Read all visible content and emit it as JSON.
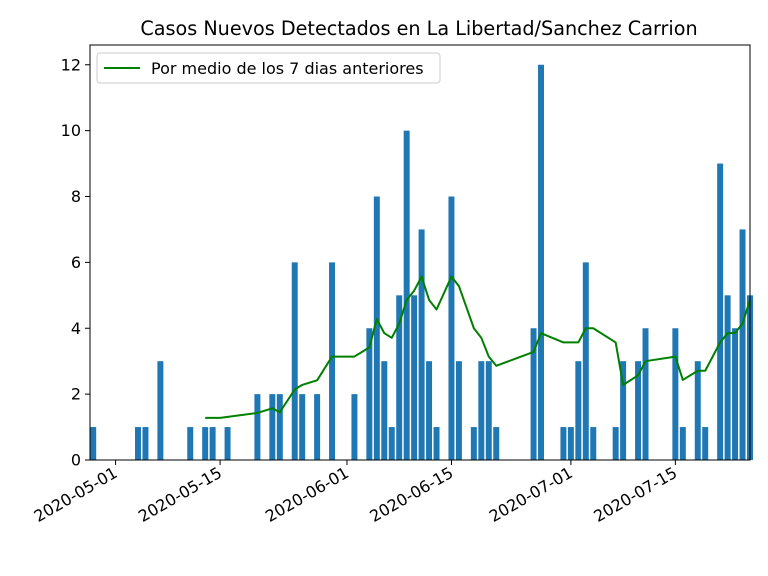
{
  "chart_data": {
    "type": "bar",
    "title": "Casos Nuevos Detectados en La Libertad/Sanchez Carrion",
    "xlabel": "",
    "ylabel": "",
    "x_range": [
      "2020-04-28",
      "2020-07-25"
    ],
    "ylim": [
      0,
      12.6
    ],
    "y_ticks": [
      0,
      2,
      4,
      6,
      8,
      10,
      12
    ],
    "x_ticks": [
      "2020-05-01",
      "2020-05-15",
      "2020-06-01",
      "2020-06-15",
      "2020-07-01",
      "2020-07-15"
    ],
    "grid": false,
    "legend": {
      "placement": "upper-left"
    },
    "bar_color": "#1f77b4",
    "line_color": "#008000",
    "series": [
      {
        "kind": "bar",
        "points": [
          [
            "2020-04-28",
            1
          ],
          [
            "2020-05-04",
            1
          ],
          [
            "2020-05-05",
            1
          ],
          [
            "2020-05-07",
            3
          ],
          [
            "2020-05-11",
            1
          ],
          [
            "2020-05-13",
            1
          ],
          [
            "2020-05-14",
            1
          ],
          [
            "2020-05-16",
            1
          ],
          [
            "2020-05-20",
            2
          ],
          [
            "2020-05-22",
            2
          ],
          [
            "2020-05-23",
            2
          ],
          [
            "2020-05-25",
            6
          ],
          [
            "2020-05-26",
            2
          ],
          [
            "2020-05-28",
            2
          ],
          [
            "2020-05-30",
            6
          ],
          [
            "2020-06-02",
            2
          ],
          [
            "2020-06-04",
            4
          ],
          [
            "2020-06-05",
            8
          ],
          [
            "2020-06-06",
            3
          ],
          [
            "2020-06-07",
            1
          ],
          [
            "2020-06-08",
            5
          ],
          [
            "2020-06-09",
            10
          ],
          [
            "2020-06-10",
            5
          ],
          [
            "2020-06-11",
            7
          ],
          [
            "2020-06-12",
            3
          ],
          [
            "2020-06-13",
            1
          ],
          [
            "2020-06-15",
            8
          ],
          [
            "2020-06-16",
            3
          ],
          [
            "2020-06-18",
            1
          ],
          [
            "2020-06-19",
            3
          ],
          [
            "2020-06-20",
            3
          ],
          [
            "2020-06-21",
            1
          ],
          [
            "2020-06-26",
            4
          ],
          [
            "2020-06-27",
            12
          ],
          [
            "2020-06-30",
            1
          ],
          [
            "2020-07-01",
            1
          ],
          [
            "2020-07-02",
            3
          ],
          [
            "2020-07-03",
            6
          ],
          [
            "2020-07-04",
            1
          ],
          [
            "2020-07-07",
            1
          ],
          [
            "2020-07-08",
            3
          ],
          [
            "2020-07-10",
            3
          ],
          [
            "2020-07-11",
            4
          ],
          [
            "2020-07-15",
            4
          ],
          [
            "2020-07-16",
            1
          ],
          [
            "2020-07-18",
            3
          ],
          [
            "2020-07-19",
            1
          ],
          [
            "2020-07-21",
            9
          ],
          [
            "2020-07-22",
            5
          ],
          [
            "2020-07-23",
            4
          ],
          [
            "2020-07-24",
            7
          ],
          [
            "2020-07-25",
            5
          ]
        ]
      },
      {
        "kind": "line",
        "name": "Por medio de los 7 dias anteriores",
        "points": [
          [
            "2020-05-13",
            1.28
          ],
          [
            "2020-05-15",
            1.28
          ],
          [
            "2020-05-20",
            1.43
          ],
          [
            "2020-05-22",
            1.57
          ],
          [
            "2020-05-23",
            1.45
          ],
          [
            "2020-05-25",
            2.14
          ],
          [
            "2020-05-26",
            2.28
          ],
          [
            "2020-05-28",
            2.42
          ],
          [
            "2020-05-30",
            3.14
          ],
          [
            "2020-06-02",
            3.14
          ],
          [
            "2020-06-04",
            3.42
          ],
          [
            "2020-06-05",
            4.28
          ],
          [
            "2020-06-06",
            3.85
          ],
          [
            "2020-06-07",
            3.71
          ],
          [
            "2020-06-08",
            4.14
          ],
          [
            "2020-06-09",
            4.86
          ],
          [
            "2020-06-10",
            5.14
          ],
          [
            "2020-06-11",
            5.57
          ],
          [
            "2020-06-12",
            4.86
          ],
          [
            "2020-06-13",
            4.57
          ],
          [
            "2020-06-15",
            5.57
          ],
          [
            "2020-06-16",
            5.28
          ],
          [
            "2020-06-18",
            4.0
          ],
          [
            "2020-06-19",
            3.71
          ],
          [
            "2020-06-20",
            3.14
          ],
          [
            "2020-06-21",
            2.86
          ],
          [
            "2020-06-26",
            3.28
          ],
          [
            "2020-06-27",
            3.85
          ],
          [
            "2020-06-30",
            3.57
          ],
          [
            "2020-07-02",
            3.57
          ],
          [
            "2020-07-03",
            4.0
          ],
          [
            "2020-07-04",
            4.0
          ],
          [
            "2020-07-07",
            3.57
          ],
          [
            "2020-07-08",
            2.28
          ],
          [
            "2020-07-10",
            2.57
          ],
          [
            "2020-07-11",
            3.0
          ],
          [
            "2020-07-15",
            3.14
          ],
          [
            "2020-07-16",
            2.43
          ],
          [
            "2020-07-18",
            2.71
          ],
          [
            "2020-07-19",
            2.71
          ],
          [
            "2020-07-21",
            3.57
          ],
          [
            "2020-07-22",
            3.85
          ],
          [
            "2020-07-23",
            3.86
          ],
          [
            "2020-07-24",
            4.14
          ],
          [
            "2020-07-25",
            4.86
          ]
        ]
      }
    ]
  }
}
